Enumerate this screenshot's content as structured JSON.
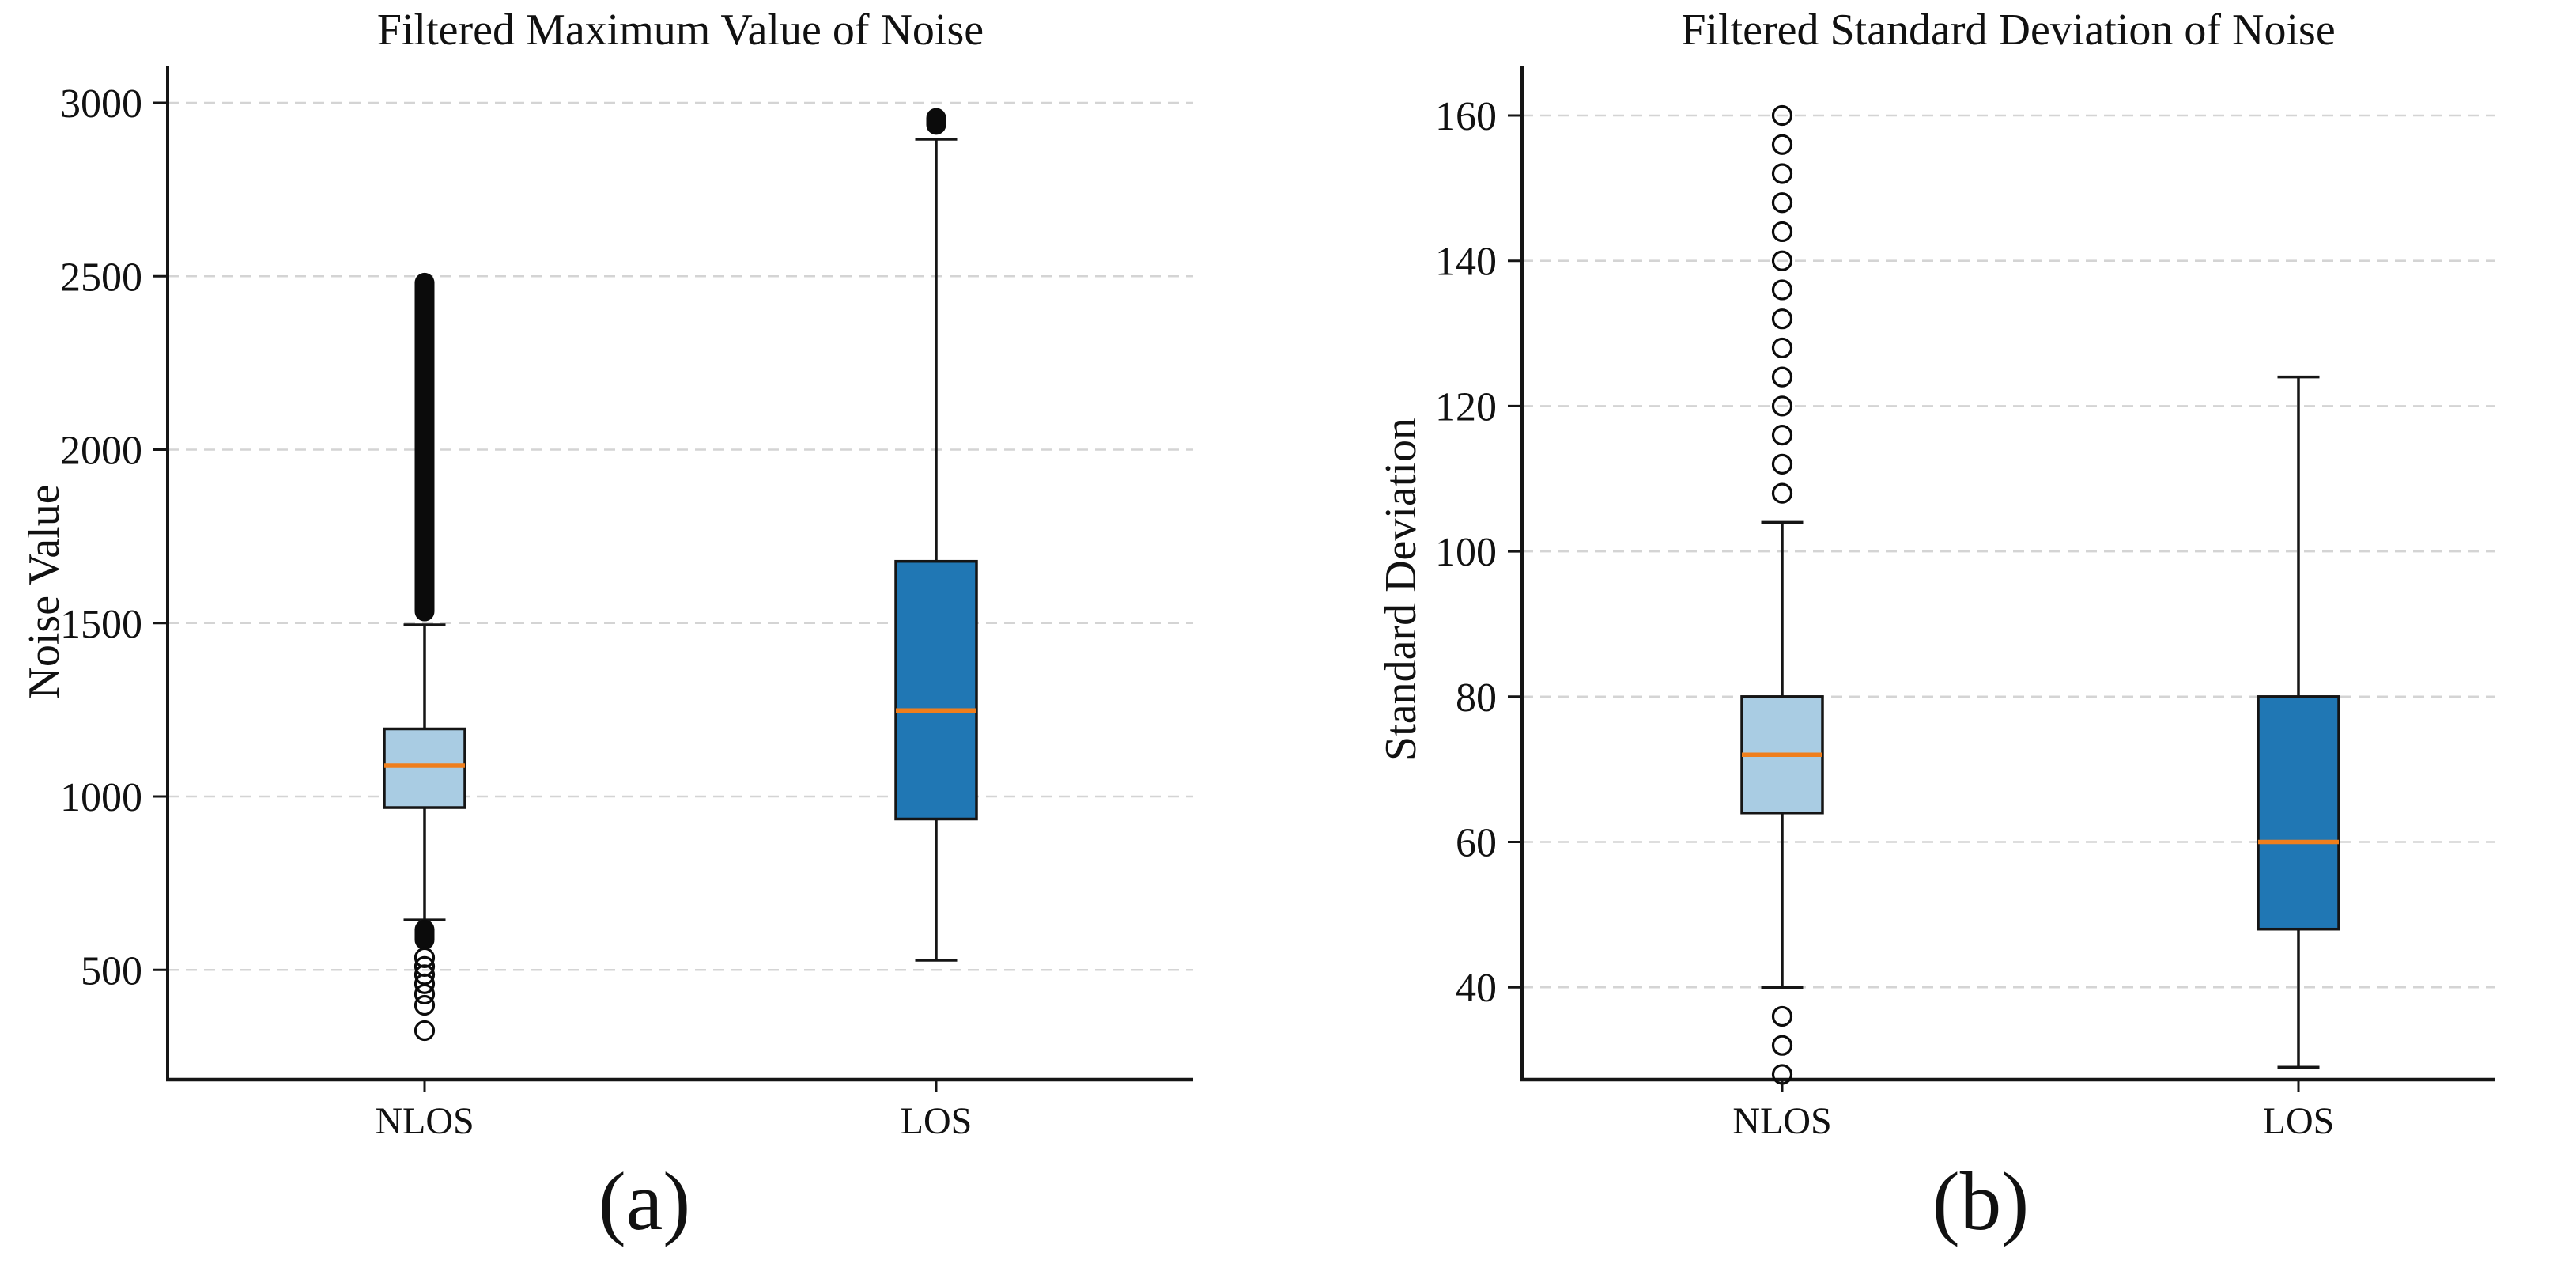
{
  "figure": {
    "captions": [
      "(a)",
      "(b)"
    ]
  },
  "style": {
    "median_color": "#ef7e1c",
    "box_edge_color": "#151515",
    "grid_color": "#d4d4d4",
    "nlos_fill": "#a9cce3",
    "los_fill": "#2077b4"
  },
  "chart_data": [
    {
      "type": "box",
      "title": "Filtered Maximum Value of Noise",
      "ylabel": "Noise Value",
      "categories": [
        "NLOS",
        "LOS"
      ],
      "yticks": [
        3000,
        2500,
        2000,
        1500,
        1000,
        500
      ],
      "ylim": [
        250,
        3120
      ],
      "grid": "horizontal-dashed",
      "legend": "none",
      "boxes": [
        {
          "category": "NLOS",
          "whislo": 644,
          "q1": 968,
          "med": 1089,
          "q3": 1195,
          "whishi": 1495,
          "fliers_dense": [
            {
              "from": 1505,
              "to": 2510
            },
            {
              "from": 558,
              "to": 645
            }
          ],
          "fliers": [
            535,
            510,
            486,
            460,
            430,
            398,
            325
          ],
          "fill": "#a9cce3"
        },
        {
          "category": "LOS",
          "whislo": 528,
          "q1": 935,
          "med": 1248,
          "q3": 1678,
          "whishi": 2895,
          "fliers_dense": [
            {
              "from": 2908,
              "to": 2985
            }
          ],
          "fliers": [],
          "fill": "#2077b4"
        }
      ]
    },
    {
      "type": "box",
      "title": "Filtered Standard Deviation of Noise",
      "ylabel": "Standard Deviation",
      "categories": [
        "NLOS",
        "LOS"
      ],
      "yticks": [
        160,
        140,
        120,
        100,
        80,
        60,
        40
      ],
      "ylim": [
        22,
        166
      ],
      "grid": "horizontal-dashed",
      "legend": "none",
      "boxes": [
        {
          "category": "NLOS",
          "whislo": 40,
          "q1": 64,
          "med": 72,
          "q3": 80,
          "whishi": 104,
          "fliers_dense": [],
          "fliers": [
            160,
            156,
            152,
            148,
            144,
            140,
            136,
            132,
            128,
            124,
            120,
            116,
            112,
            108,
            36,
            32,
            28
          ],
          "fill": "#a9cce3"
        },
        {
          "category": "LOS",
          "whislo": 29,
          "q1": 48,
          "med": 60,
          "q3": 80,
          "whishi": 124,
          "fliers_dense": [],
          "fliers": [],
          "fill": "#2077b4"
        }
      ]
    }
  ]
}
